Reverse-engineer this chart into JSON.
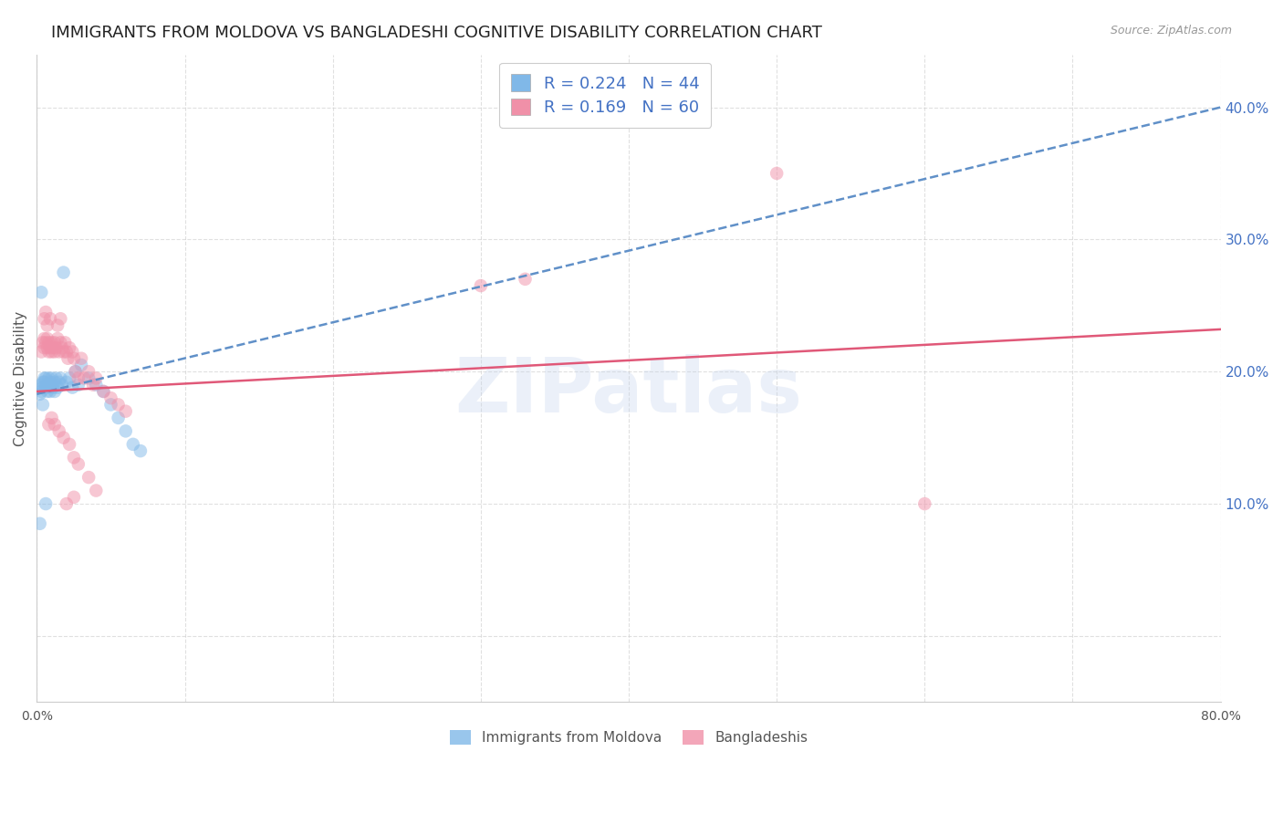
{
  "title": "IMMIGRANTS FROM MOLDOVA VS BANGLADESHI COGNITIVE DISABILITY CORRELATION CHART",
  "source": "Source: ZipAtlas.com",
  "ylabel": "Cognitive Disability",
  "right_ytick_labels": [
    "",
    "10.0%",
    "20.0%",
    "30.0%",
    "40.0%"
  ],
  "right_ytick_values": [
    0.0,
    0.1,
    0.2,
    0.3,
    0.4
  ],
  "xlim": [
    0.0,
    0.8
  ],
  "ylim": [
    -0.05,
    0.44
  ],
  "legend_series": [
    {
      "label": "R = 0.224   N = 44",
      "color": "#a8c8f0"
    },
    {
      "label": "R = 0.169   N = 60",
      "color": "#f0a8b8"
    }
  ],
  "legend_labels_bottom": [
    "Immigrants from Moldova",
    "Bangladeshis"
  ],
  "watermark": "ZIPatlas",
  "blue_scatter_x": [
    0.002,
    0.003,
    0.003,
    0.004,
    0.004,
    0.005,
    0.005,
    0.006,
    0.006,
    0.007,
    0.007,
    0.008,
    0.008,
    0.009,
    0.009,
    0.01,
    0.01,
    0.011,
    0.012,
    0.012,
    0.013,
    0.014,
    0.015,
    0.016,
    0.017,
    0.018,
    0.02,
    0.022,
    0.024,
    0.026,
    0.028,
    0.03,
    0.035,
    0.04,
    0.045,
    0.05,
    0.055,
    0.06,
    0.065,
    0.07,
    0.003,
    0.004,
    0.002,
    0.006
  ],
  "blue_scatter_y": [
    0.183,
    0.19,
    0.185,
    0.192,
    0.188,
    0.195,
    0.192,
    0.188,
    0.195,
    0.19,
    0.185,
    0.195,
    0.188,
    0.192,
    0.185,
    0.19,
    0.195,
    0.188,
    0.192,
    0.185,
    0.195,
    0.188,
    0.192,
    0.195,
    0.19,
    0.275,
    0.192,
    0.195,
    0.188,
    0.2,
    0.19,
    0.205,
    0.195,
    0.19,
    0.185,
    0.175,
    0.165,
    0.155,
    0.145,
    0.14,
    0.26,
    0.175,
    0.085,
    0.1
  ],
  "pink_scatter_x": [
    0.003,
    0.004,
    0.005,
    0.005,
    0.006,
    0.007,
    0.007,
    0.008,
    0.008,
    0.009,
    0.01,
    0.01,
    0.011,
    0.012,
    0.012,
    0.013,
    0.014,
    0.015,
    0.016,
    0.017,
    0.018,
    0.019,
    0.02,
    0.021,
    0.022,
    0.024,
    0.025,
    0.026,
    0.028,
    0.03,
    0.032,
    0.035,
    0.038,
    0.04,
    0.045,
    0.05,
    0.055,
    0.06,
    0.3,
    0.33,
    0.008,
    0.01,
    0.012,
    0.015,
    0.018,
    0.022,
    0.025,
    0.028,
    0.035,
    0.04,
    0.005,
    0.006,
    0.007,
    0.009,
    0.014,
    0.016,
    0.02,
    0.025,
    0.5,
    0.6
  ],
  "pink_scatter_y": [
    0.215,
    0.222,
    0.218,
    0.225,
    0.222,
    0.218,
    0.225,
    0.215,
    0.222,
    0.218,
    0.215,
    0.222,
    0.218,
    0.215,
    0.222,
    0.218,
    0.225,
    0.215,
    0.222,
    0.218,
    0.215,
    0.222,
    0.215,
    0.21,
    0.218,
    0.215,
    0.21,
    0.2,
    0.195,
    0.21,
    0.195,
    0.2,
    0.19,
    0.195,
    0.185,
    0.18,
    0.175,
    0.17,
    0.265,
    0.27,
    0.16,
    0.165,
    0.16,
    0.155,
    0.15,
    0.145,
    0.135,
    0.13,
    0.12,
    0.11,
    0.24,
    0.245,
    0.235,
    0.24,
    0.235,
    0.24,
    0.1,
    0.105,
    0.35,
    0.1
  ],
  "blue_line_x": [
    0.0,
    0.8
  ],
  "blue_line_y": [
    0.183,
    0.4
  ],
  "pink_line_x": [
    0.0,
    0.8
  ],
  "pink_line_y": [
    0.185,
    0.232
  ],
  "scatter_size": 110,
  "scatter_alpha": 0.5,
  "scatter_color_blue": "#80b8e8",
  "scatter_color_pink": "#f090a8",
  "line_color_blue": "#6090c8",
  "line_color_pink": "#e05878",
  "line_style_blue": "--",
  "line_style_pink": "-",
  "line_width": 1.8,
  "grid_color": "#cccccc",
  "grid_style": "--",
  "grid_alpha": 0.6,
  "bg_color": "#ffffff",
  "title_fontsize": 13,
  "axis_label_fontsize": 11,
  "tick_fontsize": 10,
  "right_tick_color": "#4472c4",
  "watermark_color": "#c0d0ec",
  "watermark_fontsize": 60,
  "watermark_alpha": 0.3
}
